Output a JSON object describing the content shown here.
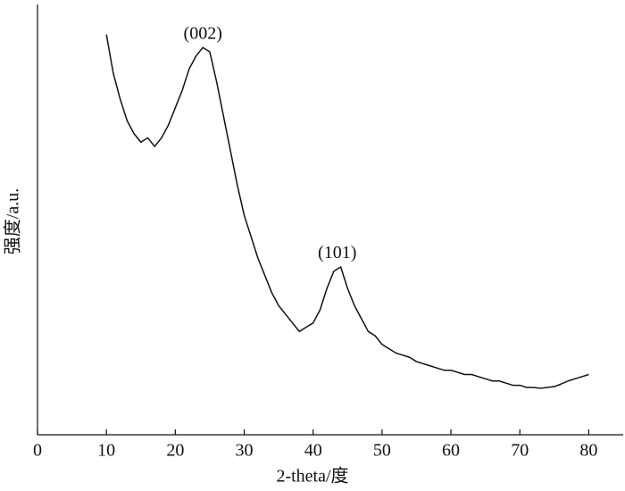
{
  "chart_data": {
    "type": "line",
    "xlabel": "2-theta/度",
    "ylabel": "强度/a.u.",
    "annotations": [
      {
        "text": "(002)",
        "x": 24,
        "y": 93
      },
      {
        "text": "(101)",
        "x": 43.5,
        "y": 42
      }
    ],
    "xlim": [
      0,
      85
    ],
    "xticks": [
      0,
      10,
      20,
      30,
      40,
      50,
      60,
      70,
      80
    ],
    "ylim": [
      0,
      100
    ],
    "color": "#111111",
    "x": [
      10,
      11,
      12,
      13,
      14,
      15,
      16,
      17,
      18,
      19,
      20,
      21,
      22,
      23,
      24,
      25,
      26,
      27,
      28,
      29,
      30,
      31,
      32,
      33,
      34,
      35,
      36,
      37,
      38,
      39,
      40,
      41,
      42,
      43,
      44,
      45,
      46,
      47,
      48,
      49,
      50,
      51,
      52,
      53,
      54,
      55,
      56,
      57,
      58,
      59,
      60,
      61,
      62,
      63,
      64,
      65,
      66,
      67,
      68,
      69,
      70,
      71,
      72,
      73,
      74,
      75,
      76,
      77,
      78,
      79,
      80
    ],
    "values": [
      93,
      84,
      78,
      73,
      70,
      68,
      69,
      67,
      69,
      72,
      76,
      80,
      85,
      88,
      90,
      89,
      82,
      74,
      66,
      58,
      51,
      46,
      41,
      37,
      33,
      30,
      28,
      26,
      24,
      25,
      26,
      29,
      34,
      38,
      39,
      34,
      30,
      27,
      24,
      23,
      21,
      20,
      19,
      18.5,
      18,
      17,
      16.5,
      16,
      15.5,
      15,
      15,
      14.5,
      14,
      14,
      13.5,
      13,
      12.5,
      12.5,
      12,
      11.5,
      11.5,
      11,
      11,
      10.8,
      11,
      11.2,
      11.8,
      12.5,
      13,
      13.5,
      14
    ]
  }
}
